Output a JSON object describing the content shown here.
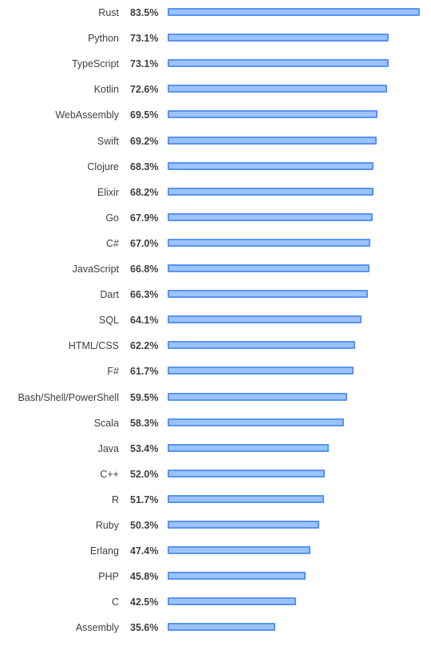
{
  "colors": {
    "bar_fill": "#9cc3ff",
    "bar_border": "#5794f2",
    "text": "#3c3f44"
  },
  "chart_data": {
    "type": "bar",
    "orientation": "horizontal",
    "title": "",
    "xlabel": "",
    "ylabel": "",
    "grid": false,
    "legend": "none",
    "xlim": [
      0,
      83.5
    ],
    "categories": [
      "Rust",
      "Python",
      "TypeScript",
      "Kotlin",
      "WebAssembly",
      "Swift",
      "Clojure",
      "Elixir",
      "Go",
      "C#",
      "JavaScript",
      "Dart",
      "SQL",
      "HTML/CSS",
      "F#",
      "Bash/Shell/PowerShell",
      "Scala",
      "Java",
      "C++",
      "R",
      "Ruby",
      "Erlang",
      "PHP",
      "C",
      "Assembly"
    ],
    "values": [
      83.5,
      73.1,
      73.1,
      72.6,
      69.5,
      69.2,
      68.3,
      68.2,
      67.9,
      67.0,
      66.8,
      66.3,
      64.1,
      62.2,
      61.7,
      59.5,
      58.3,
      53.4,
      52.0,
      51.7,
      50.3,
      47.4,
      45.8,
      42.5,
      35.6
    ],
    "value_labels": [
      "83.5%",
      "73.1%",
      "73.1%",
      "72.6%",
      "69.5%",
      "69.2%",
      "68.3%",
      "68.2%",
      "67.9%",
      "67.0%",
      "66.8%",
      "66.3%",
      "64.1%",
      "62.2%",
      "61.7%",
      "59.5%",
      "58.3%",
      "53.4%",
      "52.0%",
      "51.7%",
      "50.3%",
      "47.4%",
      "45.8%",
      "42.5%",
      "35.6%"
    ]
  }
}
